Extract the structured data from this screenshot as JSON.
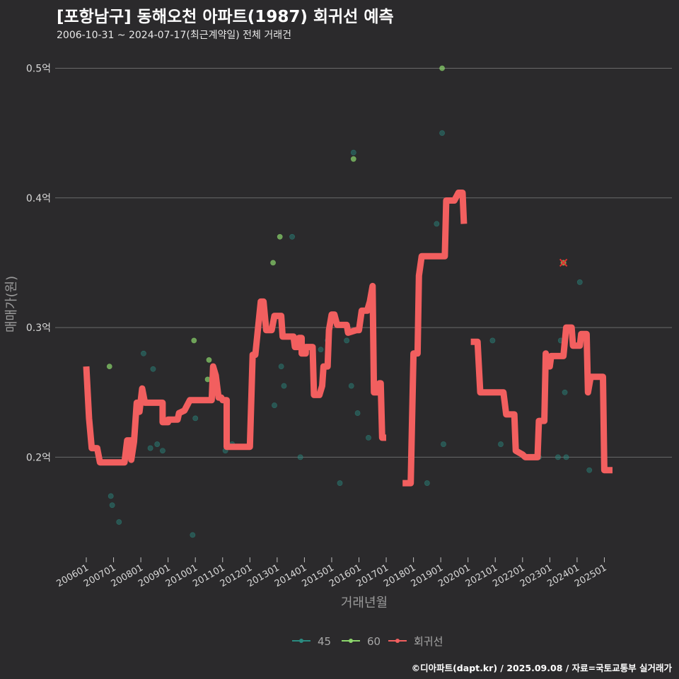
{
  "header": {
    "title": "[포항남구] 동해오천 아파트(1987) 회귀선 예측",
    "subtitle": "2006-10-31 ~ 2024-07-17(최근계약일) 전체 거래건"
  },
  "footer": {
    "credit": "©디아파트(dapt.kr) / 2025.09.08 / 자료=국토교통부 실거래가"
  },
  "colors": {
    "background": "#2b2a2c",
    "grid": "#6a6a6a",
    "series_45": "#2a8a80",
    "series_60": "#8cd66c",
    "regression": "#f25f5f",
    "highlight": "#e03030"
  },
  "chart_data": {
    "type": "scatter",
    "title": "[포항남구] 동해오천 아파트(1987) 회귀선 예측",
    "xlabel": "거래년월",
    "ylabel": "매매가(원)",
    "x_range": [
      2006.0,
      2025.3
    ],
    "ylim": [
      0.125,
      0.51
    ],
    "y_ticks": [
      {
        "value": 0.2,
        "label": "0.2억"
      },
      {
        "value": 0.3,
        "label": "0.3억"
      },
      {
        "value": 0.4,
        "label": "0.4억"
      },
      {
        "value": 0.5,
        "label": "0.5억"
      }
    ],
    "x_ticks": [
      {
        "value": 2006.0,
        "label": "200601"
      },
      {
        "value": 2007.0,
        "label": "200701"
      },
      {
        "value": 2008.0,
        "label": "200801"
      },
      {
        "value": 2009.0,
        "label": "200901"
      },
      {
        "value": 2010.0,
        "label": "201001"
      },
      {
        "value": 2011.0,
        "label": "201101"
      },
      {
        "value": 2012.0,
        "label": "201201"
      },
      {
        "value": 2013.0,
        "label": "201301"
      },
      {
        "value": 2014.0,
        "label": "201401"
      },
      {
        "value": 2015.0,
        "label": "201501"
      },
      {
        "value": 2016.0,
        "label": "201601"
      },
      {
        "value": 2017.0,
        "label": "201701"
      },
      {
        "value": 2018.0,
        "label": "201801"
      },
      {
        "value": 2019.0,
        "label": "201901"
      },
      {
        "value": 2020.0,
        "label": "202001"
      },
      {
        "value": 2021.0,
        "label": "202101"
      },
      {
        "value": 2022.0,
        "label": "202201"
      },
      {
        "value": 2023.0,
        "label": "202301"
      },
      {
        "value": 2024.0,
        "label": "202401"
      },
      {
        "value": 2025.0,
        "label": "202501"
      }
    ],
    "legend": {
      "position": "bottom",
      "items": [
        "45",
        "60",
        "회귀선"
      ]
    },
    "series": [
      {
        "name": "45",
        "points": [
          [
            2006.9,
            0.17
          ],
          [
            2006.95,
            0.163
          ],
          [
            2007.2,
            0.15
          ],
          [
            2008.1,
            0.28
          ],
          [
            2008.35,
            0.207
          ],
          [
            2008.45,
            0.268
          ],
          [
            2008.6,
            0.21
          ],
          [
            2008.8,
            0.205
          ],
          [
            2009.9,
            0.14
          ],
          [
            2010.0,
            0.23
          ],
          [
            2011.1,
            0.205
          ],
          [
            2011.35,
            0.21
          ],
          [
            2012.9,
            0.24
          ],
          [
            2013.15,
            0.27
          ],
          [
            2013.25,
            0.255
          ],
          [
            2013.55,
            0.37
          ],
          [
            2013.85,
            0.2
          ],
          [
            2014.6,
            0.283
          ],
          [
            2014.85,
            0.29
          ],
          [
            2014.9,
            0.295
          ],
          [
            2015.3,
            0.18
          ],
          [
            2015.55,
            0.29
          ],
          [
            2015.72,
            0.255
          ],
          [
            2015.8,
            0.435
          ],
          [
            2015.95,
            0.234
          ],
          [
            2016.35,
            0.215
          ],
          [
            2018.5,
            0.18
          ],
          [
            2018.85,
            0.38
          ],
          [
            2019.05,
            0.45
          ],
          [
            2019.1,
            0.21
          ],
          [
            2020.9,
            0.29
          ],
          [
            2021.2,
            0.21
          ],
          [
            2022.6,
            0.2
          ],
          [
            2023.3,
            0.2
          ],
          [
            2023.4,
            0.29
          ],
          [
            2023.55,
            0.25
          ],
          [
            2023.6,
            0.2
          ],
          [
            2024.1,
            0.335
          ],
          [
            2024.45,
            0.19
          ]
        ]
      },
      {
        "name": "60",
        "points": [
          [
            2006.85,
            0.27
          ],
          [
            2009.95,
            0.29
          ],
          [
            2010.45,
            0.26
          ],
          [
            2010.5,
            0.275
          ],
          [
            2012.85,
            0.35
          ],
          [
            2013.1,
            0.37
          ],
          [
            2015.8,
            0.43
          ],
          [
            2019.05,
            0.5
          ]
        ]
      }
    ],
    "highlight_point": {
      "x": 2023.5,
      "y": 0.35
    },
    "regression_segments": [
      [
        [
          2006.0,
          0.27
        ],
        [
          2006.1,
          0.23
        ],
        [
          2006.2,
          0.207
        ],
        [
          2006.4,
          0.207
        ],
        [
          2006.5,
          0.196
        ],
        [
          2007.4,
          0.196
        ],
        [
          2007.5,
          0.213
        ],
        [
          2007.65,
          0.213
        ],
        [
          2007.65,
          0.198
        ],
        [
          2007.75,
          0.212
        ],
        [
          2007.85,
          0.242
        ],
        [
          2007.95,
          0.242
        ],
        [
          2007.95,
          0.235
        ],
        [
          2008.05,
          0.253
        ],
        [
          2008.15,
          0.242
        ],
        [
          2008.8,
          0.242
        ],
        [
          2008.8,
          0.227
        ],
        [
          2009.0,
          0.227
        ],
        [
          2009.0,
          0.229
        ],
        [
          2009.35,
          0.229
        ],
        [
          2009.4,
          0.234
        ],
        [
          2009.6,
          0.236
        ],
        [
          2009.8,
          0.244
        ],
        [
          2010.6,
          0.244
        ],
        [
          2010.65,
          0.27
        ],
        [
          2010.75,
          0.263
        ],
        [
          2010.85,
          0.246
        ],
        [
          2010.95,
          0.246
        ],
        [
          2011.0,
          0.244
        ],
        [
          2011.15,
          0.244
        ],
        [
          2011.15,
          0.208
        ],
        [
          2012.0,
          0.208
        ],
        [
          2012.1,
          0.279
        ],
        [
          2012.2,
          0.279
        ],
        [
          2012.3,
          0.3
        ],
        [
          2012.4,
          0.32
        ],
        [
          2012.5,
          0.32
        ],
        [
          2012.6,
          0.298
        ],
        [
          2012.8,
          0.298
        ],
        [
          2012.9,
          0.309
        ],
        [
          2013.15,
          0.309
        ],
        [
          2013.2,
          0.293
        ],
        [
          2013.5,
          0.293
        ],
        [
          2013.6,
          0.293
        ],
        [
          2013.65,
          0.285
        ],
        [
          2013.8,
          0.285
        ],
        [
          2013.8,
          0.292
        ],
        [
          2013.9,
          0.292
        ],
        [
          2013.9,
          0.28
        ],
        [
          2014.05,
          0.28
        ],
        [
          2014.05,
          0.285
        ],
        [
          2014.3,
          0.285
        ],
        [
          2014.35,
          0.248
        ],
        [
          2014.55,
          0.248
        ],
        [
          2014.65,
          0.255
        ],
        [
          2014.7,
          0.27
        ],
        [
          2014.85,
          0.27
        ],
        [
          2014.9,
          0.298
        ],
        [
          2015.0,
          0.31
        ],
        [
          2015.1,
          0.31
        ],
        [
          2015.2,
          0.302
        ],
        [
          2015.55,
          0.302
        ],
        [
          2015.6,
          0.296
        ],
        [
          2015.9,
          0.298
        ],
        [
          2016.0,
          0.298
        ],
        [
          2016.1,
          0.313
        ],
        [
          2016.3,
          0.313
        ],
        [
          2016.4,
          0.32
        ],
        [
          2016.5,
          0.332
        ],
        [
          2016.55,
          0.25
        ],
        [
          2016.7,
          0.25
        ],
        [
          2016.75,
          0.257
        ],
        [
          2016.8,
          0.257
        ],
        [
          2016.85,
          0.215
        ],
        [
          2017.0,
          0.215
        ]
      ],
      [
        [
          2017.6,
          0.18
        ],
        [
          2017.9,
          0.18
        ],
        [
          2018.0,
          0.28
        ],
        [
          2018.15,
          0.28
        ],
        [
          2018.2,
          0.34
        ],
        [
          2018.3,
          0.355
        ],
        [
          2019.15,
          0.355
        ],
        [
          2019.2,
          0.398
        ],
        [
          2019.5,
          0.398
        ],
        [
          2019.65,
          0.404
        ],
        [
          2019.8,
          0.404
        ],
        [
          2019.85,
          0.38
        ]
      ],
      [
        [
          2020.1,
          0.289
        ],
        [
          2020.35,
          0.289
        ],
        [
          2020.45,
          0.25
        ],
        [
          2021.3,
          0.25
        ],
        [
          2021.4,
          0.233
        ],
        [
          2021.7,
          0.233
        ],
        [
          2021.75,
          0.205
        ],
        [
          2022.0,
          0.202
        ],
        [
          2022.1,
          0.2
        ],
        [
          2022.55,
          0.2
        ],
        [
          2022.6,
          0.228
        ],
        [
          2022.8,
          0.228
        ],
        [
          2022.85,
          0.28
        ],
        [
          2023.0,
          0.27
        ],
        [
          2023.05,
          0.278
        ],
        [
          2023.5,
          0.278
        ],
        [
          2023.6,
          0.3
        ],
        [
          2023.8,
          0.3
        ],
        [
          2023.85,
          0.286
        ],
        [
          2024.1,
          0.286
        ],
        [
          2024.15,
          0.295
        ],
        [
          2024.35,
          0.295
        ],
        [
          2024.4,
          0.25
        ],
        [
          2024.5,
          0.262
        ],
        [
          2024.95,
          0.262
        ],
        [
          2025.0,
          0.19
        ],
        [
          2025.3,
          0.19
        ]
      ]
    ]
  }
}
